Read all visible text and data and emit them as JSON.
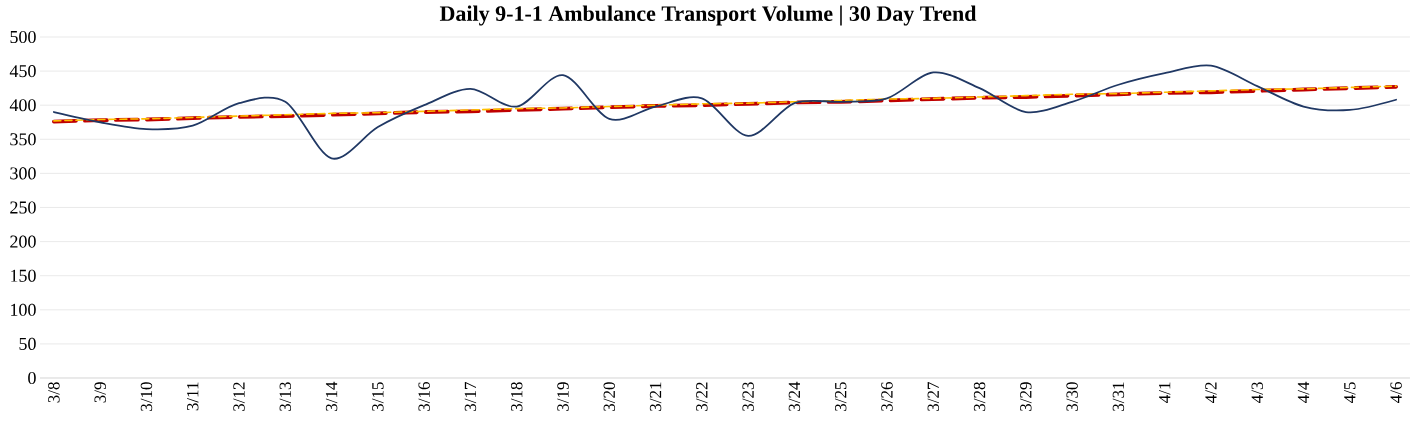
{
  "chart_data": {
    "type": "line",
    "title": "Daily 9-1-1 Ambulance Transport Volume | 30 Day Trend",
    "categories": [
      "3/8",
      "3/9",
      "3/10",
      "3/11",
      "3/12",
      "3/13",
      "3/14",
      "3/15",
      "3/16",
      "3/17",
      "3/18",
      "3/19",
      "3/20",
      "3/21",
      "3/22",
      "3/23",
      "3/24",
      "3/25",
      "3/26",
      "3/27",
      "3/28",
      "3/29",
      "3/30",
      "3/31",
      "4/1",
      "4/2",
      "4/3",
      "4/4",
      "4/5",
      "4/6"
    ],
    "series": [
      {
        "color": "#c00000",
        "line_style": "dashed",
        "values": [
          376,
          378,
          379,
          381,
          383,
          384,
          386,
          388,
          390,
          391,
          393,
          395,
          397,
          399,
          400,
          402,
          404,
          405,
          407,
          409,
          411,
          412,
          414,
          416,
          418,
          419,
          421,
          423,
          425,
          427
        ]
      },
      {
        "color": "#ffc000",
        "line_style": "dashed",
        "values": [
          377,
          379,
          380,
          382,
          384,
          386,
          388,
          389,
          391,
          393,
          395,
          396,
          398,
          400,
          402,
          403,
          405,
          407,
          409,
          410,
          412,
          414,
          416,
          417,
          419,
          421,
          423,
          424,
          426,
          428
        ]
      },
      {
        "color": "#203864",
        "line_style": "solid",
        "values": [
          390,
          375,
          365,
          370,
          403,
          405,
          322,
          368,
          400,
          424,
          398,
          444,
          380,
          398,
          410,
          355,
          403,
          405,
          410,
          448,
          425,
          390,
          405,
          430,
          447,
          458,
          428,
          398,
          393,
          408
        ]
      }
    ],
    "ylim": [
      0,
      500
    ],
    "yticks": [
      0,
      50,
      100,
      150,
      200,
      250,
      300,
      350,
      400,
      450,
      500
    ],
    "grid": "y",
    "marker": "none"
  }
}
